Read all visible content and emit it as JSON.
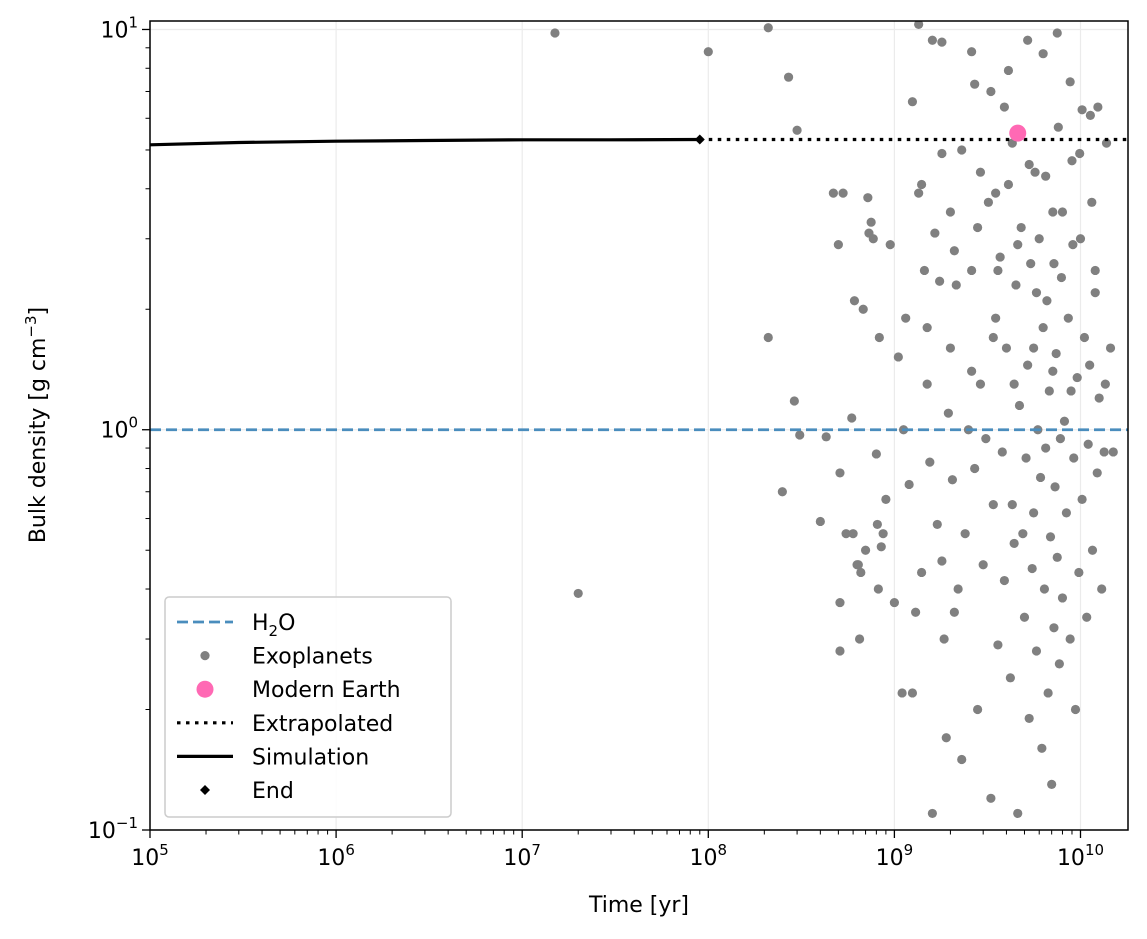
{
  "chart_data": {
    "type": "scatter",
    "xlabel": "Time [yr]",
    "ylabel": "Bulk density [g cm",
    "ylabel_sup": "−3",
    "ylabel_end": "]",
    "x_scale": "log",
    "y_scale": "log",
    "xlim": [
      100000,
      18000000000
    ],
    "ylim": [
      0.1,
      10.5
    ],
    "grid": true,
    "legend_position": "lower-left",
    "x_ticks": [
      {
        "value": 100000,
        "base": "10",
        "exp": "5"
      },
      {
        "value": 1000000,
        "base": "10",
        "exp": "6"
      },
      {
        "value": 10000000,
        "base": "10",
        "exp": "7"
      },
      {
        "value": 100000000,
        "base": "10",
        "exp": "8"
      },
      {
        "value": 1000000000,
        "base": "10",
        "exp": "9"
      },
      {
        "value": 10000000000,
        "base": "10",
        "exp": "10"
      }
    ],
    "y_ticks": [
      {
        "value": 0.1,
        "base": "10",
        "exp": "−1"
      },
      {
        "value": 1,
        "base": "10",
        "exp": "0"
      },
      {
        "value": 10,
        "base": "10",
        "exp": "1"
      }
    ],
    "h2o_line": {
      "y": 1.0,
      "color": "#4a8dbd",
      "style": "dashed"
    },
    "simulation": {
      "color": "#000000",
      "points": [
        [
          100000,
          5.15
        ],
        [
          300000,
          5.22
        ],
        [
          1000000,
          5.26
        ],
        [
          3000000,
          5.28
        ],
        [
          10000000,
          5.3
        ],
        [
          30000000,
          5.3
        ],
        [
          90000000,
          5.31
        ]
      ]
    },
    "end_point": {
      "x": 90000000,
      "y": 5.31,
      "color": "#000000"
    },
    "extrapolated": {
      "x_from": 90000000,
      "x_to": 18000000000,
      "y": 5.31,
      "color": "#000000",
      "style": "dotted"
    },
    "modern_earth": {
      "x": 4600000000,
      "y": 5.51,
      "color": "#ff69b4"
    },
    "exoplanets": {
      "color": "#808080",
      "points": [
        [
          15000000,
          9.8
        ],
        [
          20000000,
          0.39
        ],
        [
          100000000,
          8.8
        ],
        [
          210000000,
          1.7
        ],
        [
          210000000,
          10.1
        ],
        [
          250000000,
          0.7
        ],
        [
          270000000,
          7.6
        ],
        [
          290000000,
          1.18
        ],
        [
          300000000,
          5.6
        ],
        [
          310000000,
          0.97
        ],
        [
          400000000,
          0.59
        ],
        [
          430000000,
          0.96
        ],
        [
          470000000,
          3.9
        ],
        [
          500000000,
          2.9
        ],
        [
          510000000,
          0.78
        ],
        [
          510000000,
          0.37
        ],
        [
          510000000,
          0.28
        ],
        [
          530000000,
          3.9
        ],
        [
          550000000,
          0.55
        ],
        [
          590000000,
          1.07
        ],
        [
          600000000,
          0.55
        ],
        [
          610000000,
          2.1
        ],
        [
          630000000,
          0.46
        ],
        [
          640000000,
          0.46
        ],
        [
          650000000,
          0.3
        ],
        [
          660000000,
          0.44
        ],
        [
          680000000,
          2.0
        ],
        [
          700000000,
          0.5
        ],
        [
          720000000,
          3.8
        ],
        [
          730000000,
          3.1
        ],
        [
          750000000,
          3.3
        ],
        [
          770000000,
          3.0
        ],
        [
          800000000,
          0.87
        ],
        [
          810000000,
          0.58
        ],
        [
          820000000,
          0.4
        ],
        [
          830000000,
          1.7
        ],
        [
          850000000,
          0.51
        ],
        [
          870000000,
          0.55
        ],
        [
          900000000,
          0.67
        ],
        [
          950000000,
          2.9
        ],
        [
          1000000000,
          0.37
        ],
        [
          1050000000,
          1.52
        ],
        [
          1100000000,
          0.22
        ],
        [
          1120000000,
          1.0
        ],
        [
          1150000000,
          1.9
        ],
        [
          1200000000,
          0.73
        ],
        [
          1250000000,
          0.22
        ],
        [
          1300000000,
          0.35
        ],
        [
          1350000000,
          3.9
        ],
        [
          1400000000,
          0.44
        ],
        [
          1450000000,
          2.5
        ],
        [
          1500000000,
          1.3
        ],
        [
          1550000000,
          0.83
        ],
        [
          1600000000,
          0.11
        ],
        [
          1700000000,
          0.58
        ],
        [
          1750000000,
          2.35
        ],
        [
          1800000000,
          0.47
        ],
        [
          1850000000,
          0.3
        ],
        [
          1900000000,
          0.17
        ],
        [
          1950000000,
          1.1
        ],
        [
          2000000000,
          3.5
        ],
        [
          2050000000,
          0.75
        ],
        [
          2100000000,
          0.35
        ],
        [
          2150000000,
          2.3
        ],
        [
          2200000000,
          0.4
        ],
        [
          2300000000,
          0.15
        ],
        [
          2400000000,
          0.55
        ],
        [
          2500000000,
          1.0
        ],
        [
          2600000000,
          2.5
        ],
        [
          2700000000,
          0.8
        ],
        [
          2800000000,
          0.2
        ],
        [
          2900000000,
          1.3
        ],
        [
          3000000000,
          0.46
        ],
        [
          3100000000,
          0.95
        ],
        [
          3200000000,
          3.7
        ],
        [
          3300000000,
          0.12
        ],
        [
          3400000000,
          0.65
        ],
        [
          3500000000,
          1.9
        ],
        [
          3600000000,
          0.29
        ],
        [
          3700000000,
          2.7
        ],
        [
          3800000000,
          0.88
        ],
        [
          3900000000,
          0.42
        ],
        [
          4000000000,
          1.6
        ],
        [
          4100000000,
          4.1
        ],
        [
          4200000000,
          0.24
        ],
        [
          4300000000,
          0.65
        ],
        [
          4400000000,
          0.52
        ],
        [
          4500000000,
          2.3
        ],
        [
          4600000000,
          0.11
        ],
        [
          4700000000,
          1.15
        ],
        [
          4800000000,
          3.2
        ],
        [
          4900000000,
          0.55
        ],
        [
          5000000000,
          0.34
        ],
        [
          5100000000,
          0.85
        ],
        [
          5200000000,
          1.45
        ],
        [
          5300000000,
          0.19
        ],
        [
          5400000000,
          2.6
        ],
        [
          5500000000,
          0.45
        ],
        [
          5600000000,
          0.62
        ],
        [
          5700000000,
          4.4
        ],
        [
          5800000000,
          0.28
        ],
        [
          5900000000,
          1.0
        ],
        [
          6000000000,
          3.0
        ],
        [
          6100000000,
          0.76
        ],
        [
          6200000000,
          0.16
        ],
        [
          6300000000,
          1.8
        ],
        [
          6400000000,
          0.4
        ],
        [
          6500000000,
          0.9
        ],
        [
          6600000000,
          2.1
        ],
        [
          6700000000,
          0.22
        ],
        [
          6800000000,
          1.25
        ],
        [
          6900000000,
          0.54
        ],
        [
          7000000000,
          0.13
        ],
        [
          7100000000,
          3.5
        ],
        [
          7200000000,
          0.32
        ],
        [
          7300000000,
          0.72
        ],
        [
          7400000000,
          1.55
        ],
        [
          7500000000,
          0.48
        ],
        [
          7600000000,
          5.7
        ],
        [
          7700000000,
          0.26
        ],
        [
          7800000000,
          0.95
        ],
        [
          7900000000,
          2.4
        ],
        [
          8000000000,
          0.38
        ],
        [
          8200000000,
          1.05
        ],
        [
          8400000000,
          0.62
        ],
        [
          8600000000,
          1.9
        ],
        [
          8800000000,
          0.3
        ],
        [
          9000000000,
          4.7
        ],
        [
          9200000000,
          0.85
        ],
        [
          9400000000,
          0.2
        ],
        [
          9600000000,
          1.35
        ],
        [
          9800000000,
          0.44
        ],
        [
          10000000000,
          3.0
        ],
        [
          10200000000,
          0.67
        ],
        [
          10500000000,
          1.7
        ],
        [
          10800000000,
          0.34
        ],
        [
          11000000000,
          0.92
        ],
        [
          11300000000,
          6.1
        ],
        [
          11600000000,
          0.5
        ],
        [
          12000000000,
          2.2
        ],
        [
          12300000000,
          0.78
        ],
        [
          12600000000,
          1.2
        ],
        [
          13000000000,
          0.4
        ],
        [
          13400000000,
          0.88
        ],
        [
          13800000000,
          5.2
        ],
        [
          14500000000,
          1.6
        ],
        [
          15000000000,
          0.88
        ],
        [
          1600000000,
          9.4
        ],
        [
          1800000000,
          9.3
        ],
        [
          2600000000,
          8.8
        ],
        [
          3300000000,
          7.0
        ],
        [
          4100000000,
          7.9
        ],
        [
          5200000000,
          9.4
        ],
        [
          6300000000,
          8.7
        ],
        [
          7500000000,
          9.8
        ],
        [
          8800000000,
          7.4
        ],
        [
          10200000000,
          6.3
        ],
        [
          12400000000,
          6.4
        ],
        [
          1350000000,
          10.3
        ],
        [
          1250000000,
          6.6
        ],
        [
          2700000000,
          7.3
        ],
        [
          3900000000,
          6.4
        ],
        [
          1400000000,
          4.1
        ],
        [
          1800000000,
          4.9
        ],
        [
          2300000000,
          5.0
        ],
        [
          2900000000,
          4.4
        ],
        [
          3500000000,
          3.9
        ],
        [
          4300000000,
          5.2
        ],
        [
          5300000000,
          4.6
        ],
        [
          6500000000,
          4.3
        ],
        [
          8000000000,
          3.5
        ],
        [
          9900000000,
          4.9
        ],
        [
          11500000000,
          3.7
        ],
        [
          1650000000,
          3.1
        ],
        [
          2100000000,
          2.8
        ],
        [
          2800000000,
          3.2
        ],
        [
          3600000000,
          2.5
        ],
        [
          4600000000,
          2.9
        ],
        [
          5800000000,
          2.2
        ],
        [
          7200000000,
          2.6
        ],
        [
          9100000000,
          2.9
        ],
        [
          12000000000,
          2.5
        ],
        [
          1500000000,
          1.8
        ],
        [
          2000000000,
          1.6
        ],
        [
          2600000000,
          1.4
        ],
        [
          3400000000,
          1.7
        ],
        [
          4400000000,
          1.3
        ],
        [
          5600000000,
          1.6
        ],
        [
          7100000000,
          1.4
        ],
        [
          8900000000,
          1.25
        ],
        [
          11200000000,
          1.45
        ],
        [
          13600000000,
          1.3
        ]
      ]
    },
    "legend": [
      {
        "kind": "dashed",
        "label": "H",
        "sub": "2",
        "label_end": "O",
        "color": "#4a8dbd"
      },
      {
        "kind": "dot",
        "label": "Exoplanets",
        "sub": "",
        "label_end": "",
        "color": "#808080"
      },
      {
        "kind": "bigdot",
        "label": "Modern Earth",
        "sub": "",
        "label_end": "",
        "color": "#ff69b4"
      },
      {
        "kind": "dotted",
        "label": "Extrapolated",
        "sub": "",
        "label_end": "",
        "color": "#000000"
      },
      {
        "kind": "solid",
        "label": "Simulation",
        "sub": "",
        "label_end": "",
        "color": "#000000"
      },
      {
        "kind": "diamond",
        "label": "End",
        "sub": "",
        "label_end": "",
        "color": "#000000"
      }
    ]
  }
}
